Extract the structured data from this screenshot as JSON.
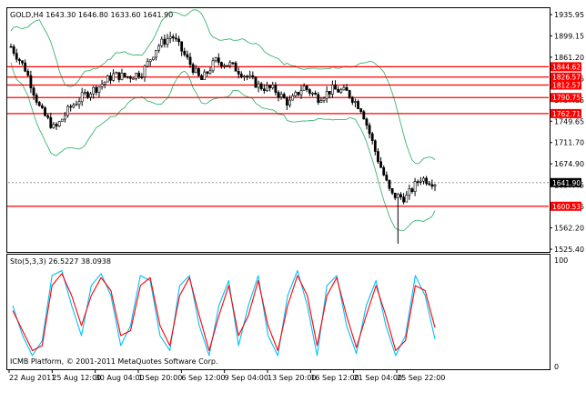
{
  "main_panel": {
    "header": "GOLD,H4  1643.30 1646.80 1633.60 1641.90",
    "y_ticks": [
      "1935.95",
      "1899.15",
      "1861.20",
      "1824.65",
      "1787.85",
      "1749.65",
      "1711.70",
      "1674.90",
      "1637.45",
      "1599.55",
      "1562.20",
      "1525.40"
    ],
    "level_labels": [
      "1844.62",
      "1826.57",
      "1812.57",
      "1790.75",
      "1762.71",
      "1600.53"
    ],
    "current_price_label": "1641.90"
  },
  "sub_panel": {
    "header": "Sto(5,3,3) 26.5227 38.0938",
    "y_top": "100",
    "y_bottom": "0",
    "watermark": "ICMB Platform, © 2001-2011 MetaQuotes Software Corp."
  },
  "x_axis": {
    "labels": [
      "22 Aug 2011",
      "25 Aug 12:00",
      "30 Aug 04:00",
      "1 Sep 20:00",
      "6 Sep 12:00",
      "9 Sep 04:00",
      "13 Sep 20:00",
      "16 Sep 12:00",
      "21 Sep 04:00",
      "25 Sep 22:00"
    ]
  },
  "colors": {
    "background": "#ffffff",
    "axis": "#000000",
    "candle": "#000000",
    "band": "#3cb371",
    "level": "#ff0000",
    "stoch_main": "#00bfff",
    "stoch_signal": "#ff0000"
  },
  "chart_data": [
    {
      "type": "candlestick",
      "symbol": "GOLD",
      "timeframe": "H4",
      "ohlc_last": {
        "open": 1643.3,
        "high": 1646.8,
        "low": 1633.6,
        "close": 1641.9
      },
      "ylim": [
        1525.4,
        1935.95
      ],
      "horizontal_levels": [
        1844.62,
        1826.57,
        1812.57,
        1790.75,
        1762.71,
        1600.53
      ],
      "close_path": [
        {
          "x": "22 Aug 2011",
          "y": 1880
        },
        {
          "x": "23 Aug",
          "y": 1840
        },
        {
          "x": "24 Aug",
          "y": 1770
        },
        {
          "x": "25 Aug",
          "y": 1735
        },
        {
          "x": "25 Aug 12:00",
          "y": 1772
        },
        {
          "x": "26 Aug",
          "y": 1795
        },
        {
          "x": "29 Aug",
          "y": 1810
        },
        {
          "x": "30 Aug 04:00",
          "y": 1830
        },
        {
          "x": "31 Aug",
          "y": 1827
        },
        {
          "x": "1 Sep 20:00",
          "y": 1835
        },
        {
          "x": "2 Sep",
          "y": 1880
        },
        {
          "x": "5 Sep",
          "y": 1900
        },
        {
          "x": "6 Sep 12:00",
          "y": 1860
        },
        {
          "x": "7 Sep",
          "y": 1820
        },
        {
          "x": "8 Sep",
          "y": 1855
        },
        {
          "x": "9 Sep 04:00",
          "y": 1848
        },
        {
          "x": "12 Sep",
          "y": 1830
        },
        {
          "x": "13 Sep 20:00",
          "y": 1810
        },
        {
          "x": "14 Sep",
          "y": 1805
        },
        {
          "x": "15 Sep",
          "y": 1780
        },
        {
          "x": "16 Sep 12:00",
          "y": 1810
        },
        {
          "x": "19 Sep",
          "y": 1790
        },
        {
          "x": "20 Sep",
          "y": 1805
        },
        {
          "x": "21 Sep 04:00",
          "y": 1800
        },
        {
          "x": "22 Sep",
          "y": 1770
        },
        {
          "x": "23 Sep",
          "y": 1690
        },
        {
          "x": "25 Sep",
          "y": 1620
        },
        {
          "x": "26 Sep",
          "y": 1615
        },
        {
          "x": "25 Sep 22:00",
          "y": 1650
        },
        {
          "x": "last",
          "y": 1641.9
        }
      ]
    },
    {
      "type": "line",
      "title": "Sto(5,3,3)",
      "ylim": [
        0,
        100
      ],
      "last_values": {
        "main": 26.5227,
        "signal": 38.0938
      },
      "series": [
        {
          "values": [
            60,
            30,
            10,
            25,
            90,
            95,
            60,
            30,
            80,
            92,
            70,
            20,
            40,
            90,
            85,
            30,
            15,
            80,
            90,
            40,
            10,
            60,
            85,
            20,
            60,
            90,
            30,
            10,
            70,
            95,
            60,
            10,
            80,
            90,
            40,
            12,
            60,
            85,
            40,
            10,
            30,
            90,
            70,
            26.5
          ]
        },
        {
          "values": [
            55,
            35,
            15,
            20,
            80,
            92,
            70,
            40,
            70,
            88,
            75,
            30,
            35,
            80,
            88,
            40,
            20,
            70,
            88,
            50,
            15,
            50,
            80,
            30,
            50,
            85,
            40,
            15,
            60,
            90,
            70,
            20,
            70,
            88,
            50,
            18,
            50,
            80,
            50,
            15,
            25,
            80,
            75,
            38.1
          ]
        }
      ]
    }
  ]
}
